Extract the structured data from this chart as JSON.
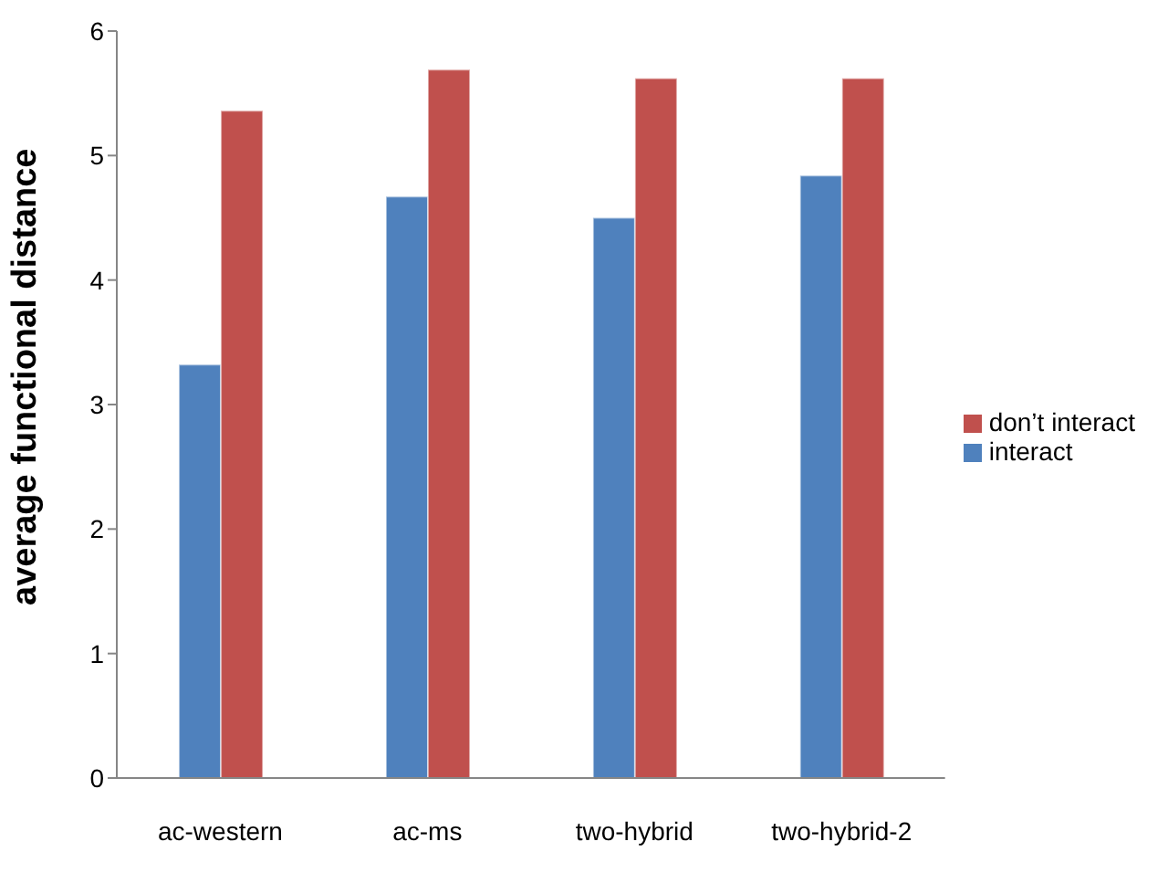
{
  "chart_data": {
    "type": "bar",
    "ylabel": "average functional distance",
    "categories": [
      "ac-western",
      "ac-ms",
      "two-hybrid",
      "two-hybrid-2"
    ],
    "series": [
      {
        "name": "interact",
        "color": "#4f81bd",
        "values": [
          3.32,
          4.67,
          4.5,
          4.84
        ]
      },
      {
        "name": "don’t interact",
        "color": "#c0504d",
        "values": [
          5.36,
          5.69,
          5.62,
          5.62
        ]
      }
    ],
    "ylim": [
      0,
      6
    ],
    "yticks": [
      0,
      1,
      2,
      3,
      4,
      5,
      6
    ],
    "grid": false,
    "legend": "right"
  }
}
